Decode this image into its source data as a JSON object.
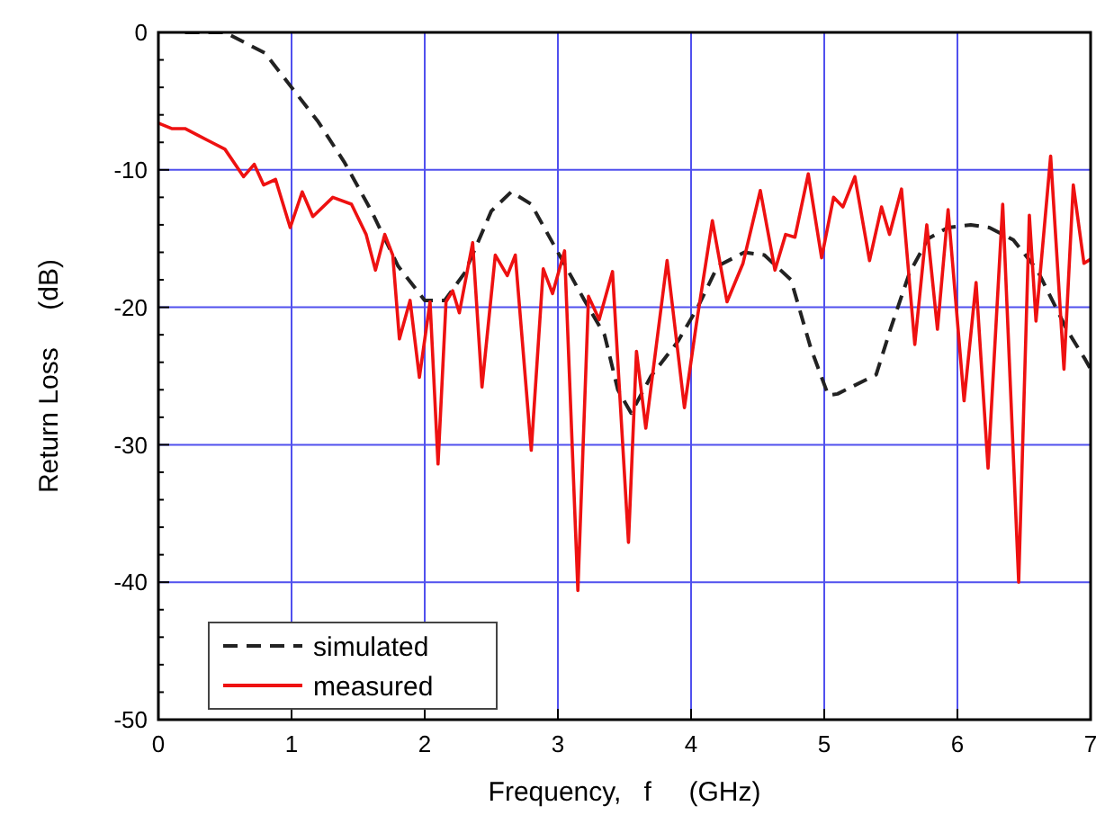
{
  "chart_data": {
    "type": "line",
    "xlabel": "Frequency,   f     (GHz)",
    "ylabel": "Return Loss     (dB)",
    "xlim": [
      0,
      7
    ],
    "ylim": [
      -50,
      0
    ],
    "xticks": [
      0,
      1,
      2,
      3,
      4,
      5,
      6,
      7
    ],
    "yticks": [
      -50,
      -40,
      -30,
      -20,
      -10,
      0
    ],
    "grid": true,
    "legend": "bottom left",
    "series": [
      {
        "name": "simulated",
        "color": "#222222",
        "line_style": "dashed",
        "x": [
          0.2,
          0.5,
          0.8,
          1.0,
          1.2,
          1.4,
          1.6,
          1.8,
          2.0,
          2.15,
          2.3,
          2.5,
          2.65,
          2.8,
          3.0,
          3.2,
          3.35,
          3.45,
          3.55,
          3.7,
          3.9,
          4.05,
          4.2,
          4.4,
          4.55,
          4.75,
          4.9,
          5.03,
          5.1,
          5.39,
          5.5,
          5.64,
          5.78,
          5.93,
          6.1,
          6.24,
          6.42,
          6.6,
          6.82,
          6.96,
          7.0
        ],
        "values": [
          0,
          0,
          -1.5,
          -4,
          -6.5,
          -9.5,
          -13,
          -17,
          -19.5,
          -19.5,
          -17.5,
          -13,
          -11.6,
          -12.5,
          -16,
          -19.5,
          -22,
          -26,
          -27.7,
          -25,
          -22.5,
          -20,
          -17,
          -16,
          -16.2,
          -18,
          -23,
          -26.4,
          -26.3,
          -24.9,
          -21.5,
          -17.5,
          -15,
          -14.2,
          -14,
          -14.2,
          -15.1,
          -17.3,
          -21.6,
          -23.8,
          -24.5
        ]
      },
      {
        "name": "measured",
        "color": "#ee1111",
        "line_style": "solid",
        "x": [
          0,
          0.1,
          0.2,
          0.3,
          0.4,
          0.5,
          0.64,
          0.72,
          0.79,
          0.88,
          0.99,
          1.08,
          1.16,
          1.31,
          1.45,
          1.56,
          1.63,
          1.7,
          1.76,
          1.81,
          1.89,
          1.96,
          2.04,
          2.1,
          2.16,
          2.21,
          2.26,
          2.36,
          2.43,
          2.53,
          2.62,
          2.68,
          2.8,
          2.89,
          2.96,
          3.05,
          3.15,
          3.23,
          3.31,
          3.41,
          3.53,
          3.59,
          3.66,
          3.82,
          3.95,
          4.04,
          4.16,
          4.27,
          4.39,
          4.52,
          4.63,
          4.71,
          4.78,
          4.88,
          4.98,
          5.07,
          5.14,
          5.23,
          5.34,
          5.43,
          5.49,
          5.58,
          5.68,
          5.77,
          5.85,
          5.93,
          6.05,
          6.14,
          6.23,
          6.34,
          6.46,
          6.54,
          6.59,
          6.7,
          6.8,
          6.87,
          6.95,
          7.0
        ],
        "values": [
          -6.6,
          -7,
          -7,
          -7.5,
          -8,
          -8.5,
          -10.5,
          -9.6,
          -11.1,
          -10.7,
          -14.2,
          -11.6,
          -13.4,
          -12,
          -12.5,
          -14.7,
          -17.3,
          -14.7,
          -16.2,
          -22.3,
          -19.5,
          -25.1,
          -19.6,
          -31.4,
          -19.6,
          -18.8,
          -20.4,
          -15.3,
          -25.8,
          -16.2,
          -17.7,
          -16.2,
          -30.4,
          -17.2,
          -19,
          -15.9,
          -40.6,
          -19.2,
          -20.9,
          -17.4,
          -37.1,
          -23.2,
          -28.8,
          -16.6,
          -27.3,
          -21.2,
          -13.7,
          -19.6,
          -16.8,
          -11.5,
          -17.3,
          -14.7,
          -14.9,
          -10.3,
          -16.4,
          -12,
          -12.7,
          -10.5,
          -16.6,
          -12.7,
          -14.7,
          -11.4,
          -22.7,
          -14,
          -21.6,
          -12.9,
          -26.8,
          -18.2,
          -31.7,
          -12.5,
          -40,
          -13.3,
          -21,
          -9,
          -24.5,
          -11.1,
          -16.8,
          -16.5
        ]
      }
    ]
  }
}
